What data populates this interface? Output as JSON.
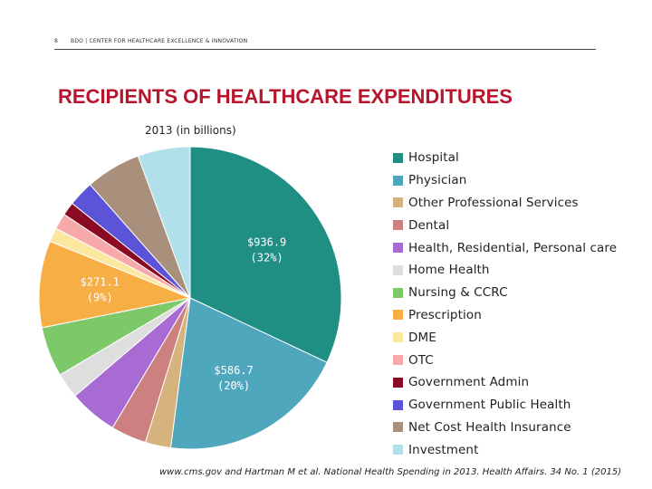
{
  "header": {
    "page_number": "8",
    "org": "BDO | CENTER FOR HEALTHCARE EXCELLENCE & INNOVATION"
  },
  "title": "RECIPIENTS OF HEALTHCARE EXPENDITURES",
  "subtitle": "2013 (in billions)",
  "source": "www.cms.gov and Hartman M et al. National Health  Spending in 2013. Health Affairs. 34 No. 1 (2015)",
  "chart_data": {
    "type": "pie",
    "unit": "billions",
    "legend_position": "right",
    "slices": [
      {
        "name": "Hospital",
        "value": 936.9,
        "percent": 32,
        "color": "#1f8f84",
        "label": "$936.9",
        "pct_label": "(32%)"
      },
      {
        "name": "Physician",
        "value": 586.7,
        "percent": 20,
        "color": "#4fa7bd",
        "label": "$586.7",
        "pct_label": "(20%)"
      },
      {
        "name": "Other Professional Services",
        "value": 80,
        "color": "#d6b27c"
      },
      {
        "name": "Dental",
        "value": 111,
        "color": "#cc8080"
      },
      {
        "name": "Health, Residential, Personal care",
        "value": 152,
        "color": "#a86bd4"
      },
      {
        "name": "Home Health",
        "value": 80,
        "color": "#dedede"
      },
      {
        "name": "Nursing & CCRC",
        "value": 156,
        "color": "#7dc96a"
      },
      {
        "name": "Prescription",
        "value": 271.1,
        "percent": 9,
        "color": "#f7ae45",
        "label": "$271.1",
        "pct_label": "(9%)"
      },
      {
        "name": "DME",
        "value": 44,
        "color": "#fce7a0"
      },
      {
        "name": "OTC",
        "value": 50,
        "color": "#f7a8a8"
      },
      {
        "name": "Government Admin",
        "value": 42,
        "color": "#8b0a24"
      },
      {
        "name": "Government Public Health",
        "value": 80,
        "color": "#5b54d8"
      },
      {
        "name": "Net Cost Health Insurance",
        "value": 173,
        "color": "#a8907c"
      },
      {
        "name": "Investment",
        "value": 164,
        "color": "#b2e0ea"
      }
    ]
  }
}
